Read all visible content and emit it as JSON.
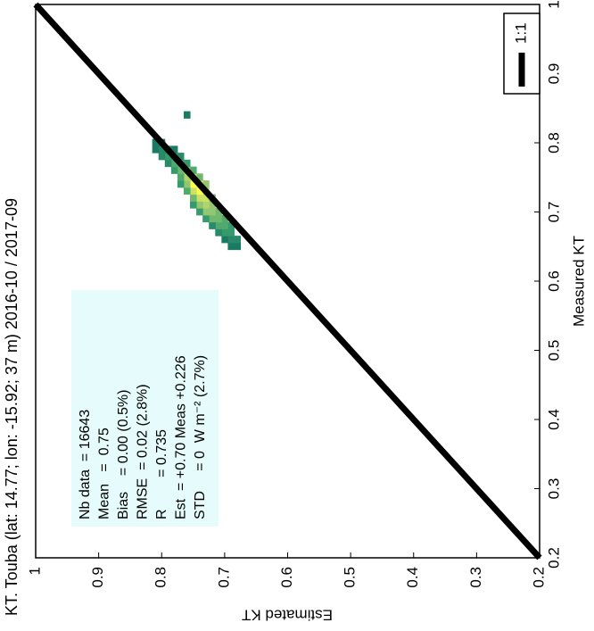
{
  "chart_data": {
    "type": "density-scatter",
    "title": "KT. Touba (lat: 14.77; lon: -15.92; 37 m) 2016-10 / 2017-09",
    "x_label": "Measured KT",
    "y_label": "Estimated KT",
    "xlim": [
      0.2,
      1
    ],
    "ylim": [
      0.2,
      1
    ],
    "xticks": [
      0.2,
      0.3,
      0.4,
      0.5,
      0.6,
      0.7,
      0.8,
      0.9,
      1
    ],
    "yticks": [
      0.2,
      0.3,
      0.4,
      0.5,
      0.6,
      0.7,
      0.8,
      0.9,
      1
    ],
    "grid": false,
    "colormap": [
      "#0e6a5e",
      "#3aa06e",
      "#a8d070",
      "#fffb50"
    ],
    "series": [
      {
        "x": [
          0.65,
          0.65,
          0.66,
          0.66,
          0.66,
          0.67,
          0.67,
          0.67,
          0.68,
          0.68,
          0.68,
          0.68,
          0.69,
          0.69,
          0.69,
          0.69,
          0.7,
          0.7,
          0.7,
          0.7,
          0.71,
          0.71,
          0.71,
          0.71,
          0.72,
          0.72,
          0.72,
          0.72,
          0.73,
          0.73,
          0.73,
          0.73,
          0.74,
          0.74,
          0.74,
          0.74,
          0.74,
          0.75,
          0.75,
          0.75,
          0.75,
          0.76,
          0.76,
          0.76,
          0.76,
          0.77,
          0.77,
          0.77,
          0.77,
          0.78,
          0.78,
          0.78,
          0.78,
          0.79,
          0.79,
          0.79,
          0.79,
          0.8,
          0.8,
          0.84
        ],
        "y": [
          0.68,
          0.69,
          0.68,
          0.69,
          0.7,
          0.69,
          0.7,
          0.71,
          0.69,
          0.7,
          0.71,
          0.72,
          0.7,
          0.71,
          0.72,
          0.73,
          0.71,
          0.72,
          0.73,
          0.74,
          0.72,
          0.73,
          0.74,
          0.75,
          0.72,
          0.73,
          0.74,
          0.75,
          0.73,
          0.74,
          0.75,
          0.76,
          0.73,
          0.74,
          0.75,
          0.76,
          0.77,
          0.74,
          0.75,
          0.76,
          0.77,
          0.75,
          0.76,
          0.77,
          0.78,
          0.76,
          0.77,
          0.78,
          0.79,
          0.77,
          0.78,
          0.79,
          0.8,
          0.78,
          0.79,
          0.8,
          0.81,
          0.8,
          0.81,
          0.76
        ],
        "density": [
          0.1,
          0.1,
          0.2,
          0.2,
          0.1,
          0.3,
          0.3,
          0.2,
          0.3,
          0.4,
          0.4,
          0.2,
          0.4,
          0.5,
          0.5,
          0.3,
          0.5,
          0.6,
          0.6,
          0.3,
          0.6,
          0.7,
          0.6,
          0.3,
          0.5,
          0.8,
          0.8,
          0.5,
          0.7,
          1.0,
          0.8,
          0.4,
          0.6,
          0.9,
          1.0,
          0.6,
          0.3,
          0.5,
          0.8,
          0.7,
          0.4,
          0.4,
          0.6,
          0.5,
          0.3,
          0.3,
          0.4,
          0.4,
          0.2,
          0.2,
          0.3,
          0.3,
          0.2,
          0.1,
          0.2,
          0.2,
          0.1,
          0.1,
          0.1,
          0.1
        ]
      }
    ],
    "reference_line": {
      "name": "1:1",
      "color": "#000000",
      "x": [
        0.2,
        1
      ],
      "y": [
        0.2,
        1
      ]
    },
    "legend": "lower right",
    "stats": [
      "Nb data  = 16643",
      "Mean   =  0.75",
      "Bias    = 0.00 (0.5%)",
      "RMSE  = 0.02 (2.8%)",
      "R        = 0.735",
      "Est  = +0.70 Meas +0.226",
      "STD     = 0  W m⁻² (2.7%)"
    ]
  }
}
